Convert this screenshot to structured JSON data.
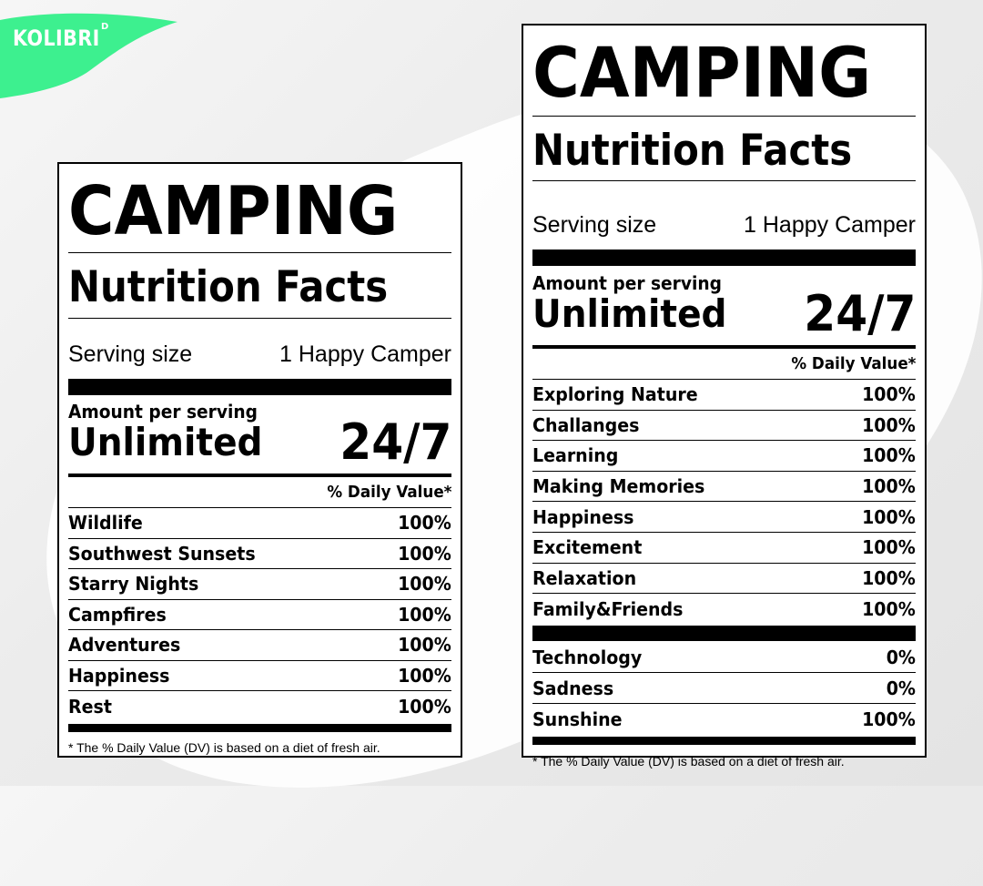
{
  "brand": {
    "name": "KOLIBRI",
    "sup": "D",
    "accent": "#3df08f"
  },
  "labels": [
    {
      "title": "CAMPING",
      "subtitle": "Nutrition Facts",
      "serving_label": "Serving size",
      "serving_value": "1 Happy Camper",
      "amount_label": "Amount per serving",
      "amount_value": "Unlimited",
      "amount_big": "24/7",
      "dv_header": "% Daily Value*",
      "rows": [
        {
          "label": "Wildlife",
          "value": "100%"
        },
        {
          "label": "Southwest Sunsets",
          "value": "100%"
        },
        {
          "label": "Starry Nights",
          "value": "100%"
        },
        {
          "label": "Campfires",
          "value": "100%"
        },
        {
          "label": "Adventures",
          "value": "100%"
        },
        {
          "label": "Happiness",
          "value": "100%"
        },
        {
          "label": "Rest",
          "value": "100%"
        }
      ],
      "footnote": "* The % Daily Value (DV) is based on a diet of fresh air."
    },
    {
      "title": "CAMPING",
      "subtitle": "Nutrition Facts",
      "serving_label": "Serving size",
      "serving_value": "1 Happy Camper",
      "amount_label": "Amount per serving",
      "amount_value": "Unlimited",
      "amount_big": "24/7",
      "dv_header": "% Daily Value*",
      "rows": [
        {
          "label": "Exploring Nature",
          "value": "100%"
        },
        {
          "label": "Challanges",
          "value": "100%"
        },
        {
          "label": "Learning",
          "value": "100%"
        },
        {
          "label": "Making Memories",
          "value": "100%"
        },
        {
          "label": "Happiness",
          "value": "100%"
        },
        {
          "label": "Excitement",
          "value": "100%"
        },
        {
          "label": "Relaxation",
          "value": "100%"
        },
        {
          "label": "Family&Friends",
          "value": "100%"
        }
      ],
      "rows_extra": [
        {
          "label": "Technology",
          "value": "0%"
        },
        {
          "label": "Sadness",
          "value": "0%"
        },
        {
          "label": "Sunshine",
          "value": "100%"
        }
      ],
      "footnote": "* The % Daily Value (DV) is based on a diet of fresh air."
    }
  ]
}
